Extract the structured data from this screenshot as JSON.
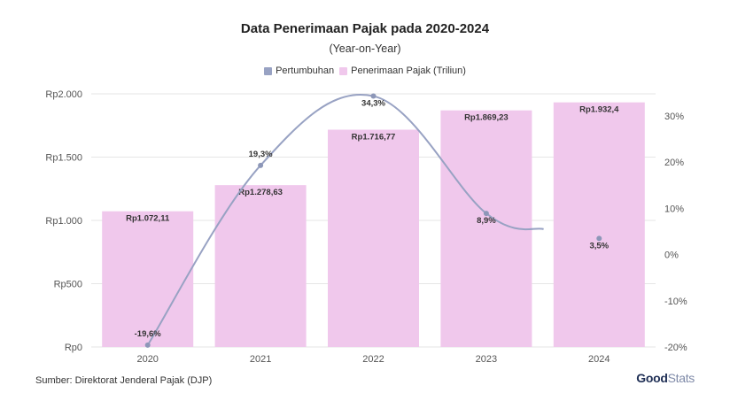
{
  "title": "Data Penerimaan Pajak pada 2020-2024",
  "subtitle": "(Year-on-Year)",
  "source": "Sumber: Direktorat Jenderal Pajak (DJP)",
  "brand": {
    "part1": "Good",
    "part2": "Stats"
  },
  "colors": {
    "bar": "#f0c8ec",
    "line": "#98a2c3",
    "point": "#8d97b8",
    "grid": "#e6e6e6"
  },
  "chart_data": {
    "type": "bar",
    "title": "Data Penerimaan Pajak pada 2020-2024",
    "subtitle": "(Year-on-Year)",
    "categories": [
      "2020",
      "2021",
      "2022",
      "2023",
      "2024"
    ],
    "legend_position": "top",
    "grid": true,
    "series": [
      {
        "name": "Pertumbuhan",
        "type": "line",
        "axis": "right",
        "values": [
          -19.6,
          19.3,
          34.3,
          8.9,
          3.5
        ],
        "labels": [
          "-19,6%",
          "19,3%",
          "34,3%",
          "8,9%",
          "3,5%"
        ]
      },
      {
        "name": "Penerimaan Pajak (Triliun)",
        "type": "bar",
        "axis": "left",
        "values": [
          1072.11,
          1278.63,
          1716.77,
          1869.23,
          1932.4
        ],
        "labels": [
          "Rp1.072,11",
          "Rp1.278,63",
          "Rp1.716,77",
          "Rp1.869,23",
          "Rp1.932,4"
        ]
      }
    ],
    "y_left": {
      "range": [
        0,
        2000
      ],
      "ticks": [
        0,
        500,
        1000,
        1500,
        2000
      ],
      "tick_labels": [
        "Rp0",
        "Rp500",
        "Rp1.000",
        "Rp1.500",
        "Rp2.000"
      ]
    },
    "y_right": {
      "range": [
        -20,
        35
      ],
      "ticks": [
        -20,
        -10,
        0,
        10,
        20,
        30
      ],
      "tick_labels": [
        "-20%",
        "-10%",
        "0%",
        "10%",
        "20%",
        "30%"
      ]
    }
  }
}
